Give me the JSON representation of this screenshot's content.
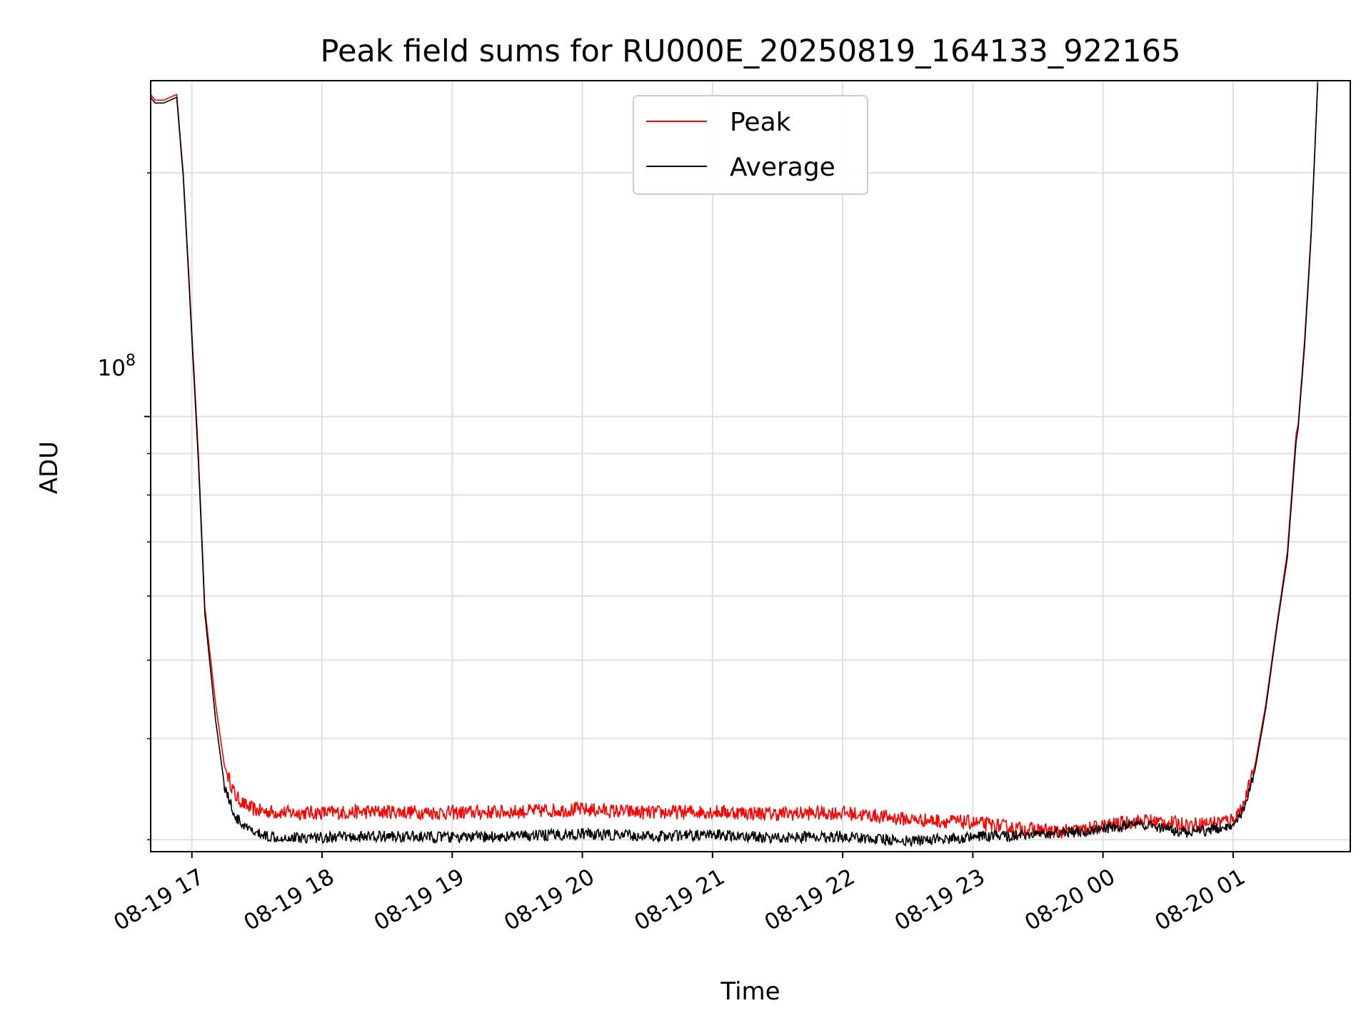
{
  "chart_data": {
    "type": "line",
    "title": "Peak field sums for RU000E_20250819_164133_922165",
    "xlabel": "Time",
    "ylabel": "ADU",
    "yscale": "log",
    "grid": true,
    "legend_position": "upper center",
    "x_ticks": [
      "08-19 17",
      "08-19 18",
      "08-19 19",
      "08-19 20",
      "08-19 21",
      "08-19 22",
      "08-19 23",
      "08-20 00",
      "08-20 01"
    ],
    "y_tick_major": "10^8",
    "y_tick_base": "10",
    "y_tick_exp": "8",
    "xlim": [
      "2025-08-19 16:41",
      "2025-08-20 01:54"
    ],
    "ylim": [
      29000000,
      260000000
    ],
    "colors": {
      "Peak": "#ff0000",
      "Average": "#000000",
      "grid": "#e0e0e0"
    },
    "series": [
      {
        "name": "Peak",
        "color": "#ff0000",
        "x": [
          "2025-08-19 16:41",
          "2025-08-19 16:43",
          "2025-08-19 16:47",
          "2025-08-19 16:53",
          "2025-08-19 16:56",
          "2025-08-19 16:58",
          "2025-08-19 17:03",
          "2025-08-19 17:06",
          "2025-08-19 17:11",
          "2025-08-19 17:15",
          "2025-08-19 17:20",
          "2025-08-19 17:25",
          "2025-08-19 17:30",
          "2025-08-19 17:36",
          "2025-08-19 17:45",
          "2025-08-19 18:00",
          "2025-08-19 18:30",
          "2025-08-19 19:00",
          "2025-08-19 19:30",
          "2025-08-19 20:00",
          "2025-08-19 20:30",
          "2025-08-19 21:00",
          "2025-08-19 21:30",
          "2025-08-19 22:00",
          "2025-08-19 22:30",
          "2025-08-19 23:00",
          "2025-08-19 23:20",
          "2025-08-19 23:40",
          "2025-08-19 23:50",
          "2025-08-20 00:00",
          "2025-08-20 00:10",
          "2025-08-20 00:20",
          "2025-08-20 00:30",
          "2025-08-20 00:40",
          "2025-08-20 00:50",
          "2025-08-20 01:00",
          "2025-08-20 01:05",
          "2025-08-20 01:10",
          "2025-08-20 01:15",
          "2025-08-20 01:20",
          "2025-08-20 01:25",
          "2025-08-20 01:29",
          "2025-08-20 01:30",
          "2025-08-20 01:33",
          "2025-08-20 01:36",
          "2025-08-20 01:39"
        ],
        "y": [
          250000000,
          246000000,
          246000000,
          250000000,
          200000000,
          160000000,
          90000000,
          58000000,
          44000000,
          37000000,
          34000000,
          33000000,
          32600000,
          32500000,
          32400000,
          32400000,
          32500000,
          32400000,
          32500000,
          32700000,
          32400000,
          32500000,
          32300000,
          32400000,
          31800000,
          31500000,
          31000000,
          30700000,
          30800000,
          31200000,
          31500000,
          31700000,
          31500000,
          31300000,
          31500000,
          31800000,
          33200000,
          37000000,
          44000000,
          55000000,
          68000000,
          95000000,
          98000000,
          125000000,
          170000000,
          260000000
        ]
      },
      {
        "name": "Average",
        "color": "#000000",
        "x": [
          "2025-08-19 16:41",
          "2025-08-19 16:43",
          "2025-08-19 16:47",
          "2025-08-19 16:53",
          "2025-08-19 16:56",
          "2025-08-19 16:58",
          "2025-08-19 17:03",
          "2025-08-19 17:06",
          "2025-08-19 17:11",
          "2025-08-19 17:15",
          "2025-08-19 17:20",
          "2025-08-19 17:25",
          "2025-08-19 17:30",
          "2025-08-19 17:36",
          "2025-08-19 17:45",
          "2025-08-19 18:00",
          "2025-08-19 18:30",
          "2025-08-19 19:00",
          "2025-08-19 19:30",
          "2025-08-19 20:00",
          "2025-08-19 20:30",
          "2025-08-19 21:00",
          "2025-08-19 21:30",
          "2025-08-19 22:00",
          "2025-08-19 22:30",
          "2025-08-19 23:00",
          "2025-08-19 23:20",
          "2025-08-19 23:40",
          "2025-08-19 23:50",
          "2025-08-20 00:00",
          "2025-08-20 00:10",
          "2025-08-20 00:20",
          "2025-08-20 00:30",
          "2025-08-20 00:40",
          "2025-08-20 00:50",
          "2025-08-20 01:00",
          "2025-08-20 01:05",
          "2025-08-20 01:10",
          "2025-08-20 01:15",
          "2025-08-20 01:20",
          "2025-08-20 01:25",
          "2025-08-20 01:29",
          "2025-08-20 01:30",
          "2025-08-20 01:33",
          "2025-08-20 01:36",
          "2025-08-20 01:39"
        ],
        "y": [
          248000000,
          244000000,
          244000000,
          248000000,
          198000000,
          158000000,
          88000000,
          57000000,
          42000000,
          35000000,
          32000000,
          31000000,
          30500000,
          30300000,
          30200000,
          30200000,
          30300000,
          30200000,
          30300000,
          30500000,
          30300000,
          30400000,
          30200000,
          30300000,
          29900000,
          30200000,
          30400000,
          30600000,
          30700000,
          30900000,
          31200000,
          31200000,
          30800000,
          30600000,
          30900000,
          31400000,
          32800000,
          36500000,
          43500000,
          54500000,
          67000000,
          93000000,
          97000000,
          123000000,
          168000000,
          258000000
        ]
      }
    ]
  }
}
